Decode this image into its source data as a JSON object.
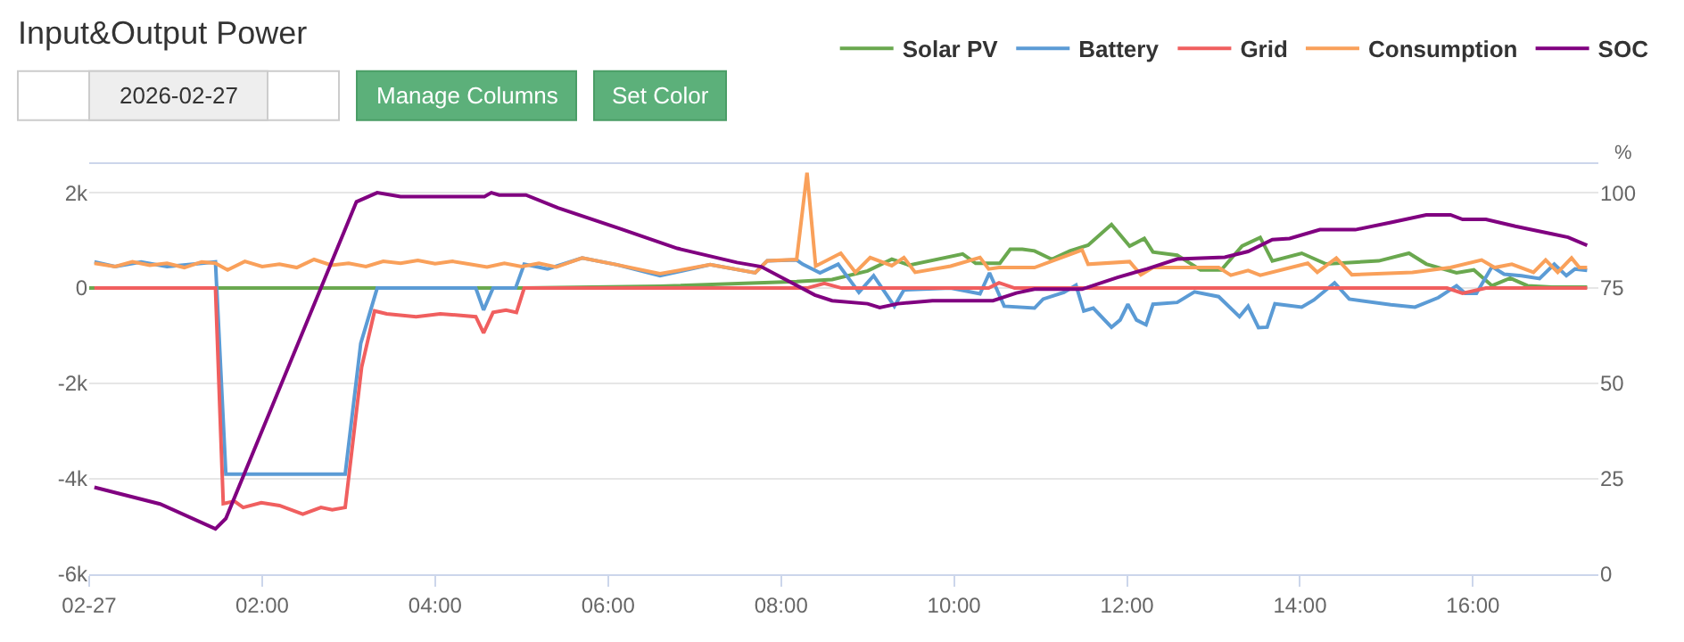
{
  "chart_data": {
    "type": "line",
    "title": "Input&Output Power",
    "y2label": "%",
    "annotations": [
      "2026-02-27",
      "Manage Columns",
      "Set Color"
    ],
    "xlim": [
      0,
      17.45
    ],
    "xticks": [
      {
        "value": 0,
        "label": "02-27"
      },
      {
        "value": 2,
        "label": "02:00"
      },
      {
        "value": 4,
        "label": "04:00"
      },
      {
        "value": 6,
        "label": "06:00"
      },
      {
        "value": 8,
        "label": "08:00"
      },
      {
        "value": 10,
        "label": "10:00"
      },
      {
        "value": 12,
        "label": "12:00"
      },
      {
        "value": 14,
        "label": "14:00"
      },
      {
        "value": 16,
        "label": "16:00"
      }
    ],
    "ylim": [
      -6000,
      2600
    ],
    "yticks": [
      {
        "value": -6000,
        "label": "-6k"
      },
      {
        "value": -4000,
        "label": "-4k"
      },
      {
        "value": -2000,
        "label": "-2k"
      },
      0,
      {
        "value": 2000,
        "label": "2k"
      }
    ],
    "y2lim": [
      0,
      107.5
    ],
    "y2ticks": [
      0,
      25,
      50,
      75,
      100
    ],
    "grid": "y",
    "legend": "top right",
    "marker": "none",
    "line_style": "solid",
    "series": [
      {
        "name": "Solar PV",
        "color": "#6aa84f",
        "x": [
          0,
          1.46,
          5.03,
          6.6,
          8.18,
          8.59,
          9.0,
          9.28,
          9.48,
          10.1,
          10.25,
          10.53,
          10.65,
          10.79,
          10.93,
          11.13,
          11.34,
          11.55,
          11.82,
          12.03,
          12.2,
          12.3,
          12.58,
          12.85,
          13.09,
          13.33,
          13.54,
          13.68,
          14.02,
          14.3,
          14.91,
          15.26,
          15.46,
          15.81,
          16.01,
          16.22,
          16.43,
          16.63,
          16.91,
          17.32
        ],
        "values": [
          0,
          0,
          0,
          40,
          135,
          180,
          360,
          605,
          480,
          715,
          520,
          520,
          815,
          815,
          780,
          605,
          780,
          900,
          1333,
          880,
          1040,
          755,
          690,
          380,
          380,
          880,
          1060,
          570,
          730,
          505,
          570,
          730,
          505,
          320,
          380,
          50,
          210,
          50,
          20,
          20
        ]
      },
      {
        "name": "Battery",
        "color": "#5b9bd5",
        "x": [
          0.06,
          0.3,
          0.6,
          0.9,
          1.2,
          1.46,
          1.58,
          2.96,
          3.14,
          3.33,
          4.47,
          4.56,
          4.67,
          4.93,
          5.03,
          5.3,
          5.7,
          6.1,
          6.6,
          7.18,
          7.7,
          7.84,
          8.18,
          8.25,
          8.45,
          8.66,
          8.9,
          9.07,
          9.31,
          9.42,
          9.96,
          10.3,
          10.41,
          10.58,
          10.93,
          11.03,
          11.27,
          11.41,
          11.5,
          11.61,
          11.82,
          11.92,
          12.01,
          12.11,
          12.22,
          12.3,
          12.58,
          12.78,
          13.06,
          13.3,
          13.4,
          13.52,
          13.62,
          13.71,
          14.02,
          14.16,
          14.4,
          14.57,
          15.05,
          15.33,
          15.6,
          15.81,
          15.91,
          16.04,
          16.22,
          16.36,
          16.56,
          16.77,
          16.94,
          17.08,
          17.18,
          17.32
        ],
        "values": [
          550,
          450,
          550,
          450,
          500,
          550,
          -3900,
          -3900,
          -1160,
          0,
          0,
          -460,
          0,
          0,
          500,
          400,
          630,
          490,
          260,
          490,
          320,
          570,
          590,
          500,
          320,
          500,
          -90,
          260,
          -380,
          -40,
          0,
          -120,
          320,
          -380,
          -420,
          -230,
          -90,
          60,
          -480,
          -420,
          -820,
          -670,
          -340,
          -670,
          -770,
          -340,
          -300,
          -80,
          -180,
          -600,
          -380,
          -830,
          -820,
          -330,
          -400,
          -250,
          110,
          -230,
          -350,
          -400,
          -200,
          50,
          -110,
          -110,
          450,
          290,
          260,
          200,
          500,
          260,
          400,
          370
        ]
      },
      {
        "name": "Grid",
        "color": "#f05f5f",
        "x": [
          0.06,
          1.46,
          1.55,
          1.68,
          1.78,
          1.99,
          2.2,
          2.47,
          2.68,
          2.81,
          2.96,
          3.15,
          3.3,
          3.44,
          3.78,
          4.06,
          4.47,
          4.56,
          4.67,
          4.82,
          4.94,
          5.03,
          8.3,
          8.5,
          8.7,
          10.4,
          10.52,
          10.7,
          15.7,
          15.88,
          16.15,
          17.32
        ],
        "values": [
          0,
          0,
          -4520,
          -4470,
          -4600,
          -4500,
          -4560,
          -4740,
          -4600,
          -4650,
          -4600,
          -1660,
          -480,
          -540,
          -600,
          -540,
          -600,
          -940,
          -510,
          -460,
          -510,
          0,
          0,
          100,
          0,
          0,
          110,
          0,
          0,
          -110,
          0,
          0
        ]
      },
      {
        "name": "Consumption",
        "color": "#f9a05a",
        "x": [
          0.06,
          0.3,
          0.5,
          0.7,
          0.9,
          1.1,
          1.3,
          1.46,
          1.6,
          1.8,
          2.0,
          2.2,
          2.4,
          2.6,
          2.8,
          3.0,
          3.2,
          3.4,
          3.6,
          3.8,
          4.0,
          4.2,
          4.4,
          4.6,
          4.8,
          5.0,
          5.2,
          5.4,
          5.7,
          6.1,
          6.6,
          7.18,
          7.7,
          7.84,
          8.18,
          8.3,
          8.4,
          8.69,
          8.86,
          9.03,
          9.28,
          9.42,
          9.55,
          9.96,
          10.3,
          10.4,
          10.52,
          10.93,
          11.48,
          11.55,
          12.03,
          12.16,
          12.3,
          13.06,
          13.2,
          13.4,
          13.54,
          14.09,
          14.2,
          14.42,
          14.6,
          15.3,
          15.74,
          16.1,
          16.25,
          16.45,
          16.7,
          16.84,
          16.98,
          17.14,
          17.23,
          17.32
        ],
        "values": [
          520,
          450,
          550,
          480,
          520,
          430,
          550,
          520,
          380,
          560,
          450,
          500,
          430,
          600,
          480,
          520,
          450,
          560,
          520,
          580,
          510,
          560,
          500,
          440,
          520,
          450,
          520,
          440,
          630,
          490,
          300,
          490,
          320,
          570,
          600,
          2420,
          460,
          730,
          330,
          640,
          470,
          640,
          330,
          460,
          640,
          400,
          430,
          430,
          800,
          500,
          555,
          280,
          430,
          430,
          270,
          370,
          270,
          520,
          330,
          630,
          280,
          330,
          430,
          590,
          430,
          500,
          330,
          590,
          330,
          630,
          430,
          430
        ]
      },
      {
        "name": "SOC",
        "color": "#800080",
        "axis": "y2",
        "x": [
          0.06,
          0.82,
          1.46,
          1.58,
          3.09,
          3.33,
          3.6,
          4.57,
          4.65,
          4.74,
          5.05,
          5.42,
          6.12,
          6.8,
          7.49,
          7.77,
          8.39,
          8.59,
          9.0,
          9.14,
          9.35,
          9.75,
          10.45,
          10.72,
          10.93,
          11.48,
          11.89,
          12.23,
          12.58,
          13.13,
          13.4,
          13.68,
          13.88,
          14.23,
          14.64,
          15.05,
          15.46,
          15.74,
          15.88,
          16.15,
          16.49,
          16.91,
          17.1,
          17.32
        ],
        "values": [
          22.8,
          18.4,
          11.9,
          14.6,
          97.6,
          100,
          99,
          99,
          100,
          99.4,
          99.4,
          96,
          90.7,
          85.4,
          81.7,
          80.6,
          73.2,
          71.7,
          70.9,
          69.9,
          70.9,
          71.7,
          71.7,
          73.7,
          74.7,
          74.7,
          77.8,
          80,
          82.6,
          83.1,
          84.6,
          87.7,
          88,
          90.3,
          90.3,
          92.2,
          94.2,
          94.2,
          93,
          93,
          91.2,
          89.2,
          88.3,
          86.2
        ]
      }
    ]
  }
}
